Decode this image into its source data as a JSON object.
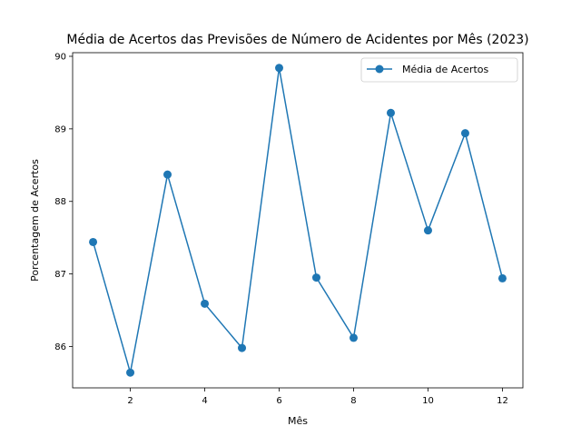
{
  "chart_data": {
    "type": "line",
    "title": "Média de Acertos das Previsões de Número de Acidentes por Mês (2023)",
    "xlabel": "Mês",
    "ylabel": "Porcentagem de Acertos",
    "xlim": [
      0.45,
      12.55
    ],
    "ylim": [
      85.43,
      90.05
    ],
    "xticks": [
      2,
      4,
      6,
      8,
      10,
      12
    ],
    "yticks": [
      86,
      87,
      88,
      89,
      90
    ],
    "grid": false,
    "legend_position": "top-right",
    "series": [
      {
        "name": "Média de Acertos",
        "color": "#1f77b4",
        "marker": "circle",
        "x": [
          1,
          2,
          3,
          4,
          5,
          6,
          7,
          8,
          9,
          10,
          11,
          12
        ],
        "y": [
          87.44,
          85.64,
          88.37,
          86.59,
          85.98,
          89.84,
          86.95,
          86.12,
          89.22,
          87.6,
          88.94,
          86.94
        ]
      }
    ]
  }
}
